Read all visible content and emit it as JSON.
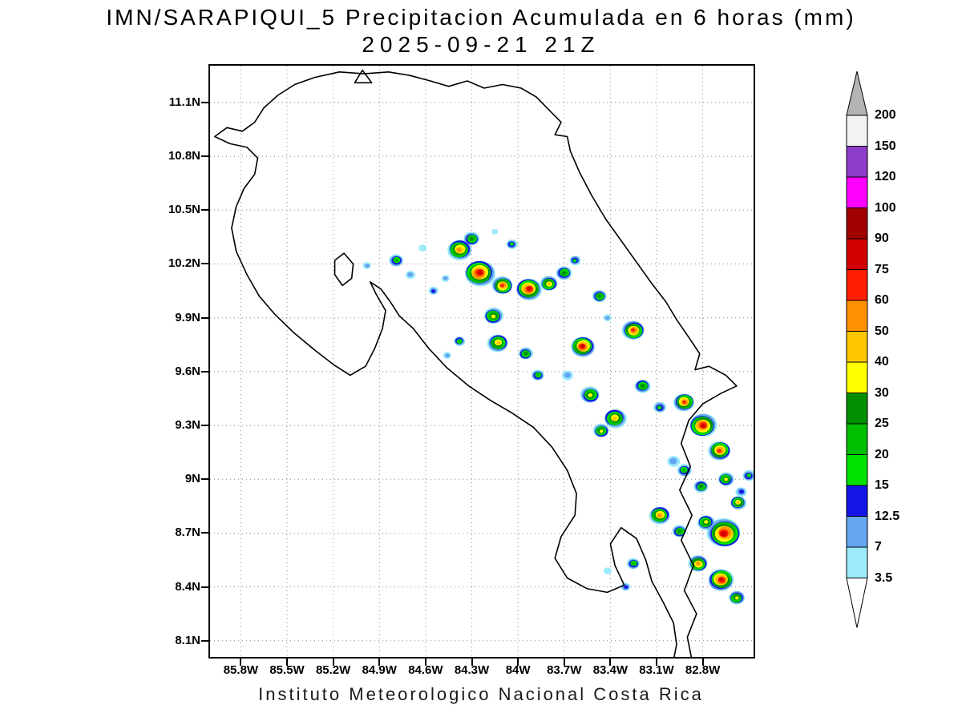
{
  "title": {
    "line1": "IMN/SARAPIQUI_5 Precipitacion Acumulada en 6 horas (mm)",
    "line2": "2025-09-21 21Z"
  },
  "footer": "Instituto Meteorologico Nacional Costa Rica",
  "map": {
    "lat_ticks": [
      {
        "label": "11.1N",
        "value": 11.1
      },
      {
        "label": "10.8N",
        "value": 10.8
      },
      {
        "label": "10.5N",
        "value": 10.5
      },
      {
        "label": "10.2N",
        "value": 10.2
      },
      {
        "label": "9.9N",
        "value": 9.9
      },
      {
        "label": "9.6N",
        "value": 9.6
      },
      {
        "label": "9.3N",
        "value": 9.3
      },
      {
        "label": "9N",
        "value": 9
      },
      {
        "label": "8.7N",
        "value": 8.7
      },
      {
        "label": "8.4N",
        "value": 8.4
      },
      {
        "label": "8.1N",
        "value": 8.1
      }
    ],
    "lon_ticks": [
      {
        "label": "85.8W",
        "value": -85.8
      },
      {
        "label": "85.5W",
        "value": -85.5
      },
      {
        "label": "85.2W",
        "value": -85.2
      },
      {
        "label": "84.9W",
        "value": -84.9
      },
      {
        "label": "84.6W",
        "value": -84.6
      },
      {
        "label": "84.3W",
        "value": -84.3
      },
      {
        "label": "84W",
        "value": -84
      },
      {
        "label": "83.7W",
        "value": -83.7
      },
      {
        "label": "83.4W",
        "value": -83.4
      },
      {
        "label": "83.1W",
        "value": -83.1
      },
      {
        "label": "82.8W",
        "value": -82.8
      }
    ],
    "lon_range": [
      -86.0,
      -82.47
    ],
    "lat_range": [
      8.01,
      11.305
    ],
    "coastline": [
      [
        [
          -82.87,
          7.99
        ],
        [
          -82.9,
          8.12
        ],
        [
          -82.84,
          8.25
        ],
        [
          -82.92,
          8.38
        ],
        [
          -82.86,
          8.52
        ],
        [
          -82.94,
          8.66
        ],
        [
          -82.87,
          8.8
        ],
        [
          -82.95,
          8.94
        ],
        [
          -82.88,
          9.07
        ],
        [
          -82.94,
          9.2
        ],
        [
          -82.89,
          9.33
        ],
        [
          -82.8,
          9.42
        ],
        [
          -82.68,
          9.48
        ],
        [
          -82.58,
          9.52
        ],
        [
          -82.65,
          9.58
        ],
        [
          -82.76,
          9.63
        ],
        [
          -82.85,
          9.61
        ],
        [
          -82.82,
          9.7
        ],
        [
          -82.89,
          9.79
        ],
        [
          -82.97,
          9.89
        ],
        [
          -83.04,
          9.99
        ],
        [
          -83.13,
          10.09
        ],
        [
          -83.23,
          10.21
        ],
        [
          -83.33,
          10.33
        ],
        [
          -83.43,
          10.45
        ],
        [
          -83.52,
          10.58
        ],
        [
          -83.6,
          10.71
        ],
        [
          -83.66,
          10.83
        ],
        [
          -83.68,
          10.91
        ],
        [
          -83.76,
          10.92
        ],
        [
          -83.72,
          10.99
        ],
        [
          -83.8,
          11.06
        ],
        [
          -83.88,
          11.13
        ],
        [
          -83.98,
          11.18
        ],
        [
          -84.1,
          11.2
        ],
        [
          -84.22,
          11.18
        ],
        [
          -84.33,
          11.22
        ],
        [
          -84.45,
          11.19
        ],
        [
          -84.57,
          11.22
        ],
        [
          -84.7,
          11.25
        ],
        [
          -84.84,
          11.27
        ],
        [
          -85.0,
          11.26
        ],
        [
          -85.16,
          11.27
        ],
        [
          -85.32,
          11.24
        ],
        [
          -85.45,
          11.2
        ],
        [
          -85.56,
          11.14
        ],
        [
          -85.65,
          11.07
        ],
        [
          -85.71,
          10.99
        ],
        [
          -85.79,
          10.94
        ],
        [
          -85.89,
          10.96
        ],
        [
          -85.97,
          10.91
        ],
        [
          -85.87,
          10.87
        ],
        [
          -85.76,
          10.85
        ],
        [
          -85.69,
          10.79
        ],
        [
          -85.71,
          10.7
        ],
        [
          -85.78,
          10.62
        ],
        [
          -85.83,
          10.52
        ],
        [
          -85.86,
          10.4
        ],
        [
          -85.83,
          10.27
        ],
        [
          -85.76,
          10.14
        ],
        [
          -85.68,
          10.02
        ],
        [
          -85.58,
          9.92
        ],
        [
          -85.46,
          9.82
        ],
        [
          -85.32,
          9.72
        ],
        [
          -85.2,
          9.64
        ],
        [
          -85.09,
          9.58
        ],
        [
          -84.99,
          9.63
        ],
        [
          -84.93,
          9.73
        ],
        [
          -84.88,
          9.84
        ],
        [
          -84.86,
          9.94
        ],
        [
          -84.92,
          10.03
        ],
        [
          -84.96,
          10.1
        ],
        [
          -84.89,
          10.06
        ],
        [
          -84.83,
          9.99
        ],
        [
          -84.77,
          9.91
        ],
        [
          -84.68,
          9.84
        ],
        [
          -84.58,
          9.73
        ],
        [
          -84.46,
          9.62
        ],
        [
          -84.32,
          9.52
        ],
        [
          -84.18,
          9.44
        ],
        [
          -84.04,
          9.37
        ],
        [
          -83.9,
          9.29
        ],
        [
          -83.78,
          9.18
        ],
        [
          -83.68,
          9.05
        ],
        [
          -83.62,
          8.92
        ],
        [
          -83.63,
          8.8
        ],
        [
          -83.72,
          8.68
        ],
        [
          -83.76,
          8.56
        ],
        [
          -83.68,
          8.45
        ],
        [
          -83.55,
          8.39
        ],
        [
          -83.42,
          8.37
        ],
        [
          -83.31,
          8.41
        ],
        [
          -83.37,
          8.52
        ],
        [
          -83.4,
          8.64
        ],
        [
          -83.33,
          8.73
        ],
        [
          -83.23,
          8.67
        ],
        [
          -83.17,
          8.55
        ],
        [
          -83.13,
          8.43
        ],
        [
          -83.06,
          8.32
        ],
        [
          -82.99,
          8.2
        ],
        [
          -82.97,
          8.08
        ],
        [
          -82.99,
          7.99
        ]
      ]
    ],
    "islands": [
      [
        [
          -85.06,
          11.21
        ],
        [
          -85.01,
          11.28
        ],
        [
          -84.95,
          11.21
        ]
      ]
    ],
    "lakes": [
      [
        [
          -85.19,
          10.22
        ],
        [
          -85.13,
          10.26
        ],
        [
          -85.07,
          10.2
        ],
        [
          -85.08,
          10.12
        ],
        [
          -85.14,
          10.08
        ],
        [
          -85.19,
          10.14
        ]
      ]
    ]
  },
  "colorbar": {
    "labels": [
      "200",
      "150",
      "120",
      "100",
      "90",
      "75",
      "60",
      "50",
      "40",
      "30",
      "25",
      "20",
      "15",
      "12.5",
      "7",
      "3.5"
    ],
    "band_colors_low_to_high": [
      "#9BEBFB",
      "#64A6F0",
      "#1414E6",
      "#00E100",
      "#00BE00",
      "#009000",
      "#FFFF00",
      "#FFC800",
      "#FF9100",
      "#FF1E00",
      "#D20000",
      "#A00000",
      "#FF00FF",
      "#8C3CC8",
      "#F2F2F2"
    ],
    "over_color": "#B4B4B4",
    "under_color": "#FFFFFF"
  },
  "chart_data": {
    "type": "heatmap",
    "units": "mm",
    "description": "6-hour accumulated precipitation cells (position in deg lon/lat, peak value in mm, outer extent in px)",
    "levels_mm": [
      3.5,
      7,
      12.5,
      15,
      20,
      25,
      30,
      40,
      50,
      60,
      75,
      90,
      100,
      120,
      150,
      200
    ],
    "cells_format": [
      "lon",
      "lat",
      "max_mm",
      "radius_px"
    ],
    "cells": [
      [
        -84.38,
        10.28,
        50,
        15
      ],
      [
        -84.3,
        10.34,
        25,
        10
      ],
      [
        -84.25,
        10.15,
        80,
        19
      ],
      [
        -84.1,
        10.08,
        60,
        13
      ],
      [
        -83.93,
        10.06,
        75,
        16
      ],
      [
        -83.8,
        10.09,
        40,
        11
      ],
      [
        -83.7,
        10.15,
        25,
        10
      ],
      [
        -83.63,
        10.22,
        15,
        7
      ],
      [
        -84.79,
        10.22,
        20,
        9
      ],
      [
        -84.7,
        10.14,
        7,
        6
      ],
      [
        -84.98,
        10.19,
        7,
        5
      ],
      [
        -84.62,
        10.29,
        3.5,
        5
      ],
      [
        -84.55,
        10.05,
        12.5,
        6
      ],
      [
        -84.47,
        10.12,
        7,
        5
      ],
      [
        -84.16,
        9.91,
        30,
        12
      ],
      [
        -84.13,
        9.76,
        45,
        13
      ],
      [
        -83.95,
        9.7,
        25,
        9
      ],
      [
        -83.58,
        9.74,
        80,
        15
      ],
      [
        -83.47,
        10.02,
        25,
        9
      ],
      [
        -83.42,
        9.9,
        7,
        5
      ],
      [
        -83.25,
        9.83,
        65,
        14
      ],
      [
        -84.04,
        10.31,
        15,
        7
      ],
      [
        -84.15,
        10.38,
        3.5,
        4
      ],
      [
        -83.87,
        9.58,
        20,
        8
      ],
      [
        -83.68,
        9.58,
        7,
        7
      ],
      [
        -83.53,
        9.47,
        35,
        12
      ],
      [
        -83.37,
        9.34,
        45,
        14
      ],
      [
        -83.46,
        9.27,
        30,
        10
      ],
      [
        -83.19,
        9.52,
        25,
        10
      ],
      [
        -83.08,
        9.4,
        15,
        8
      ],
      [
        -82.92,
        9.43,
        60,
        13
      ],
      [
        -82.8,
        9.3,
        80,
        17
      ],
      [
        -82.69,
        9.16,
        60,
        14
      ],
      [
        -82.99,
        9.1,
        7,
        8
      ],
      [
        -82.92,
        9.05,
        20,
        9
      ],
      [
        -82.81,
        8.96,
        25,
        9
      ],
      [
        -82.65,
        9.0,
        30,
        10
      ],
      [
        -82.55,
        8.93,
        12.5,
        7
      ],
      [
        -82.5,
        9.02,
        15,
        8
      ],
      [
        -83.08,
        8.8,
        50,
        13
      ],
      [
        -82.95,
        8.71,
        25,
        9
      ],
      [
        -82.78,
        8.76,
        30,
        11
      ],
      [
        -82.66,
        8.7,
        80,
        21
      ],
      [
        -82.57,
        8.87,
        40,
        10
      ],
      [
        -82.83,
        8.53,
        50,
        12
      ],
      [
        -82.68,
        8.44,
        80,
        16
      ],
      [
        -82.58,
        8.34,
        30,
        10
      ],
      [
        -83.25,
        8.53,
        20,
        8
      ],
      [
        -83.42,
        8.49,
        3.5,
        5
      ],
      [
        -83.3,
        8.4,
        12.5,
        6
      ],
      [
        -84.38,
        9.77,
        20,
        7
      ],
      [
        -84.46,
        9.69,
        7,
        5
      ]
    ]
  }
}
